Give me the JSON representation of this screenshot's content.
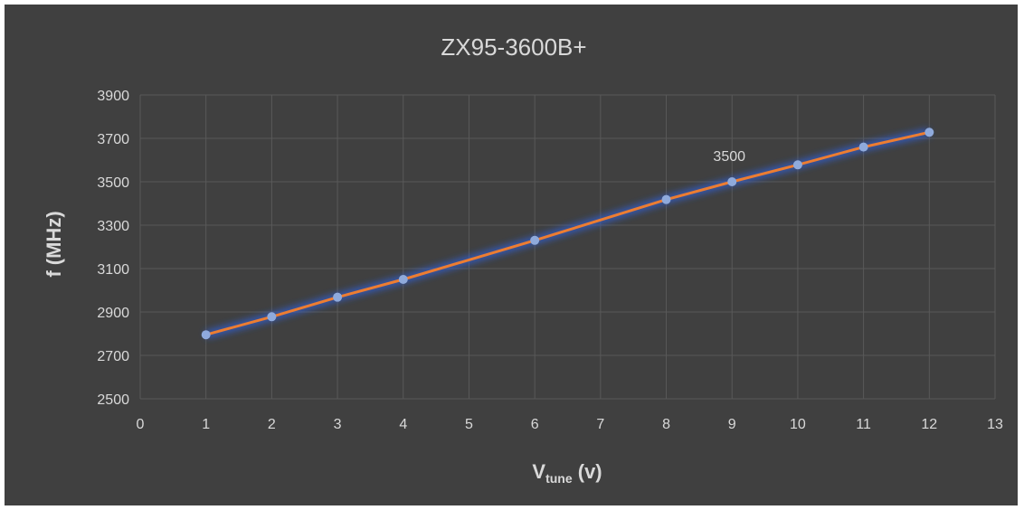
{
  "chart_data": {
    "type": "scatter",
    "title": "ZX95-3600B+",
    "xlabel": {
      "main": "V",
      "sub": "tune",
      "suffix": " (v)"
    },
    "ylabel": "f (MHz)",
    "xlim": [
      0,
      13
    ],
    "ylim": [
      2500,
      3900
    ],
    "x_ticks": [
      0,
      1,
      2,
      3,
      4,
      5,
      6,
      7,
      8,
      9,
      10,
      11,
      12,
      13
    ],
    "y_ticks": [
      2500,
      2700,
      2900,
      3100,
      3300,
      3500,
      3700,
      3900
    ],
    "grid": true,
    "legend": "none",
    "series": [
      {
        "x": [
          1,
          2,
          3,
          4,
          6,
          8,
          9,
          10,
          11,
          12
        ],
        "y": [
          2795,
          2878,
          2968,
          3050,
          3230,
          3418,
          3500,
          3578,
          3660,
          3728
        ],
        "line_color": "#ed7d31",
        "marker_color": "#8faadc",
        "glow_color": "#2f5fd8"
      }
    ],
    "annotations": [
      {
        "x": 9,
        "y": 3500,
        "text": "3500"
      }
    ]
  }
}
